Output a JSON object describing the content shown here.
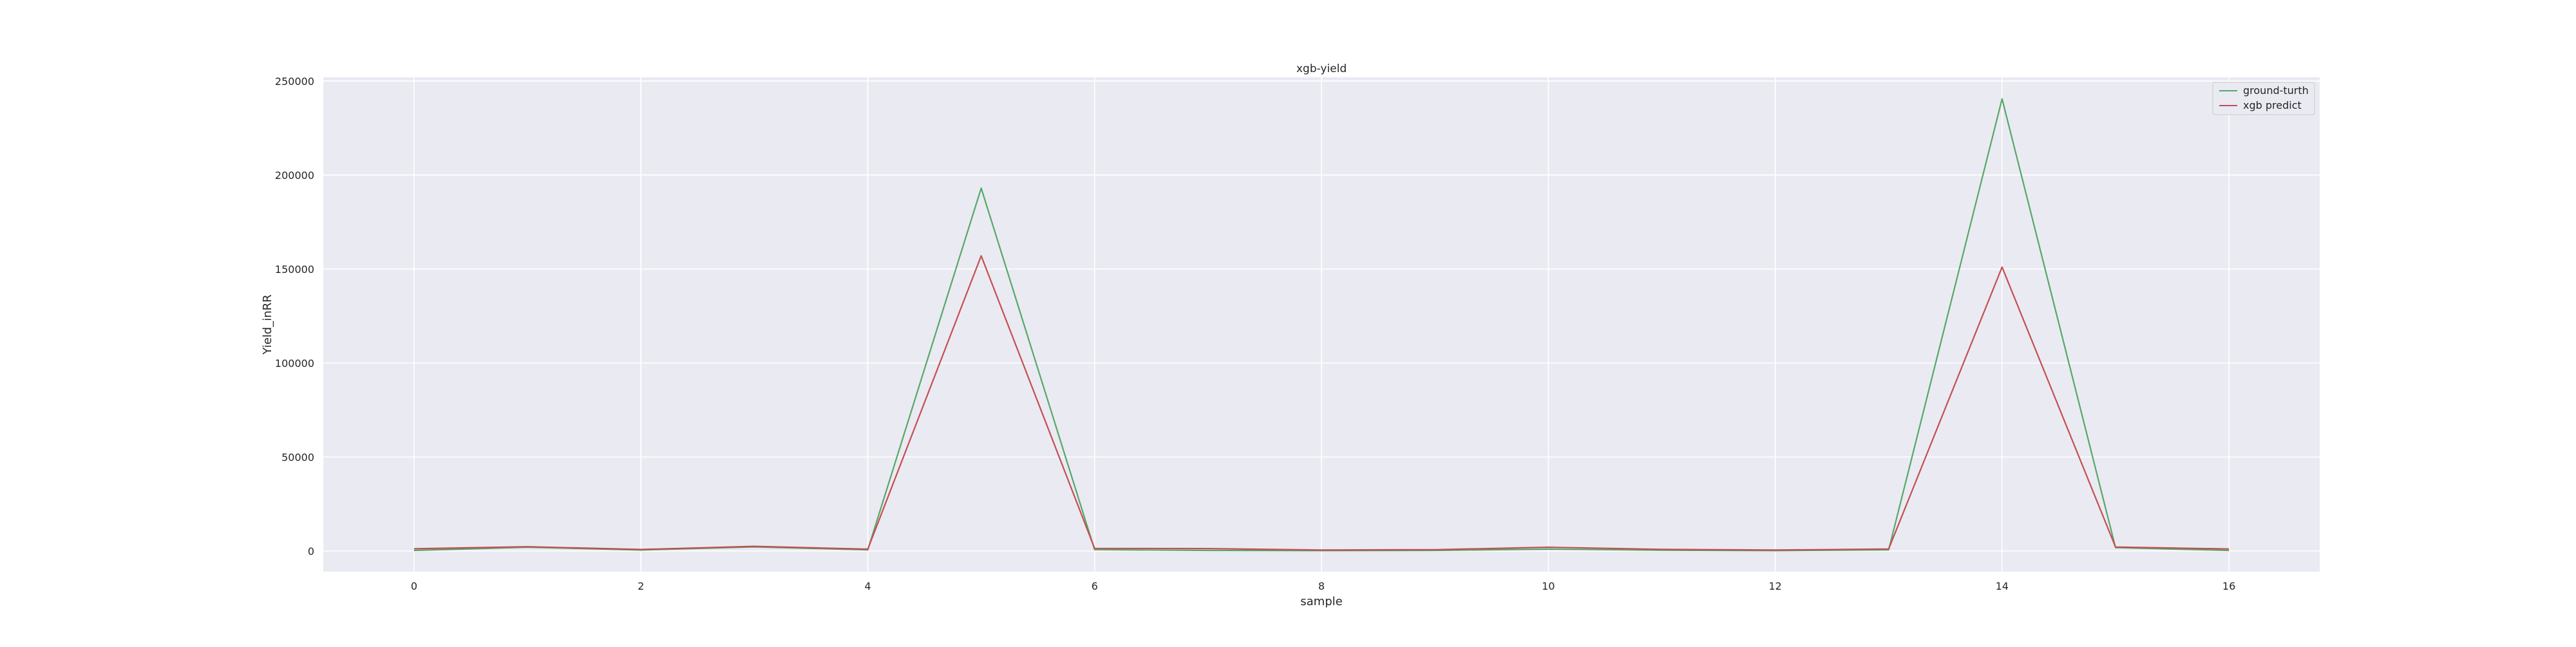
{
  "chart_data": {
    "type": "line",
    "title": "xgb-yield",
    "xlabel": "sample",
    "ylabel": "Yield_inRR",
    "xlim": [
      -0.8,
      16.8
    ],
    "ylim": [
      -11000,
      252000
    ],
    "xticks": [
      0,
      2,
      4,
      6,
      8,
      10,
      12,
      14,
      16
    ],
    "yticks": [
      0,
      50000,
      100000,
      150000,
      200000,
      250000
    ],
    "grid": true,
    "legend_position": "top-right",
    "x": [
      0,
      1,
      2,
      3,
      4,
      5,
      6,
      7,
      8,
      9,
      10,
      11,
      12,
      13,
      14,
      15,
      16
    ],
    "series": [
      {
        "name": "ground-turth",
        "color": "#55a868",
        "values": [
          300,
          2000,
          500,
          2200,
          600,
          193000,
          700,
          300,
          200,
          300,
          1000,
          400,
          200,
          600,
          240500,
          1800,
          300
        ]
      },
      {
        "name": "xgb predict",
        "color": "#c44e52",
        "values": [
          1200,
          2300,
          800,
          2500,
          1000,
          157000,
          1400,
          1300,
          500,
          700,
          2000,
          900,
          500,
          1100,
          151000,
          2100,
          1100
        ]
      }
    ]
  }
}
